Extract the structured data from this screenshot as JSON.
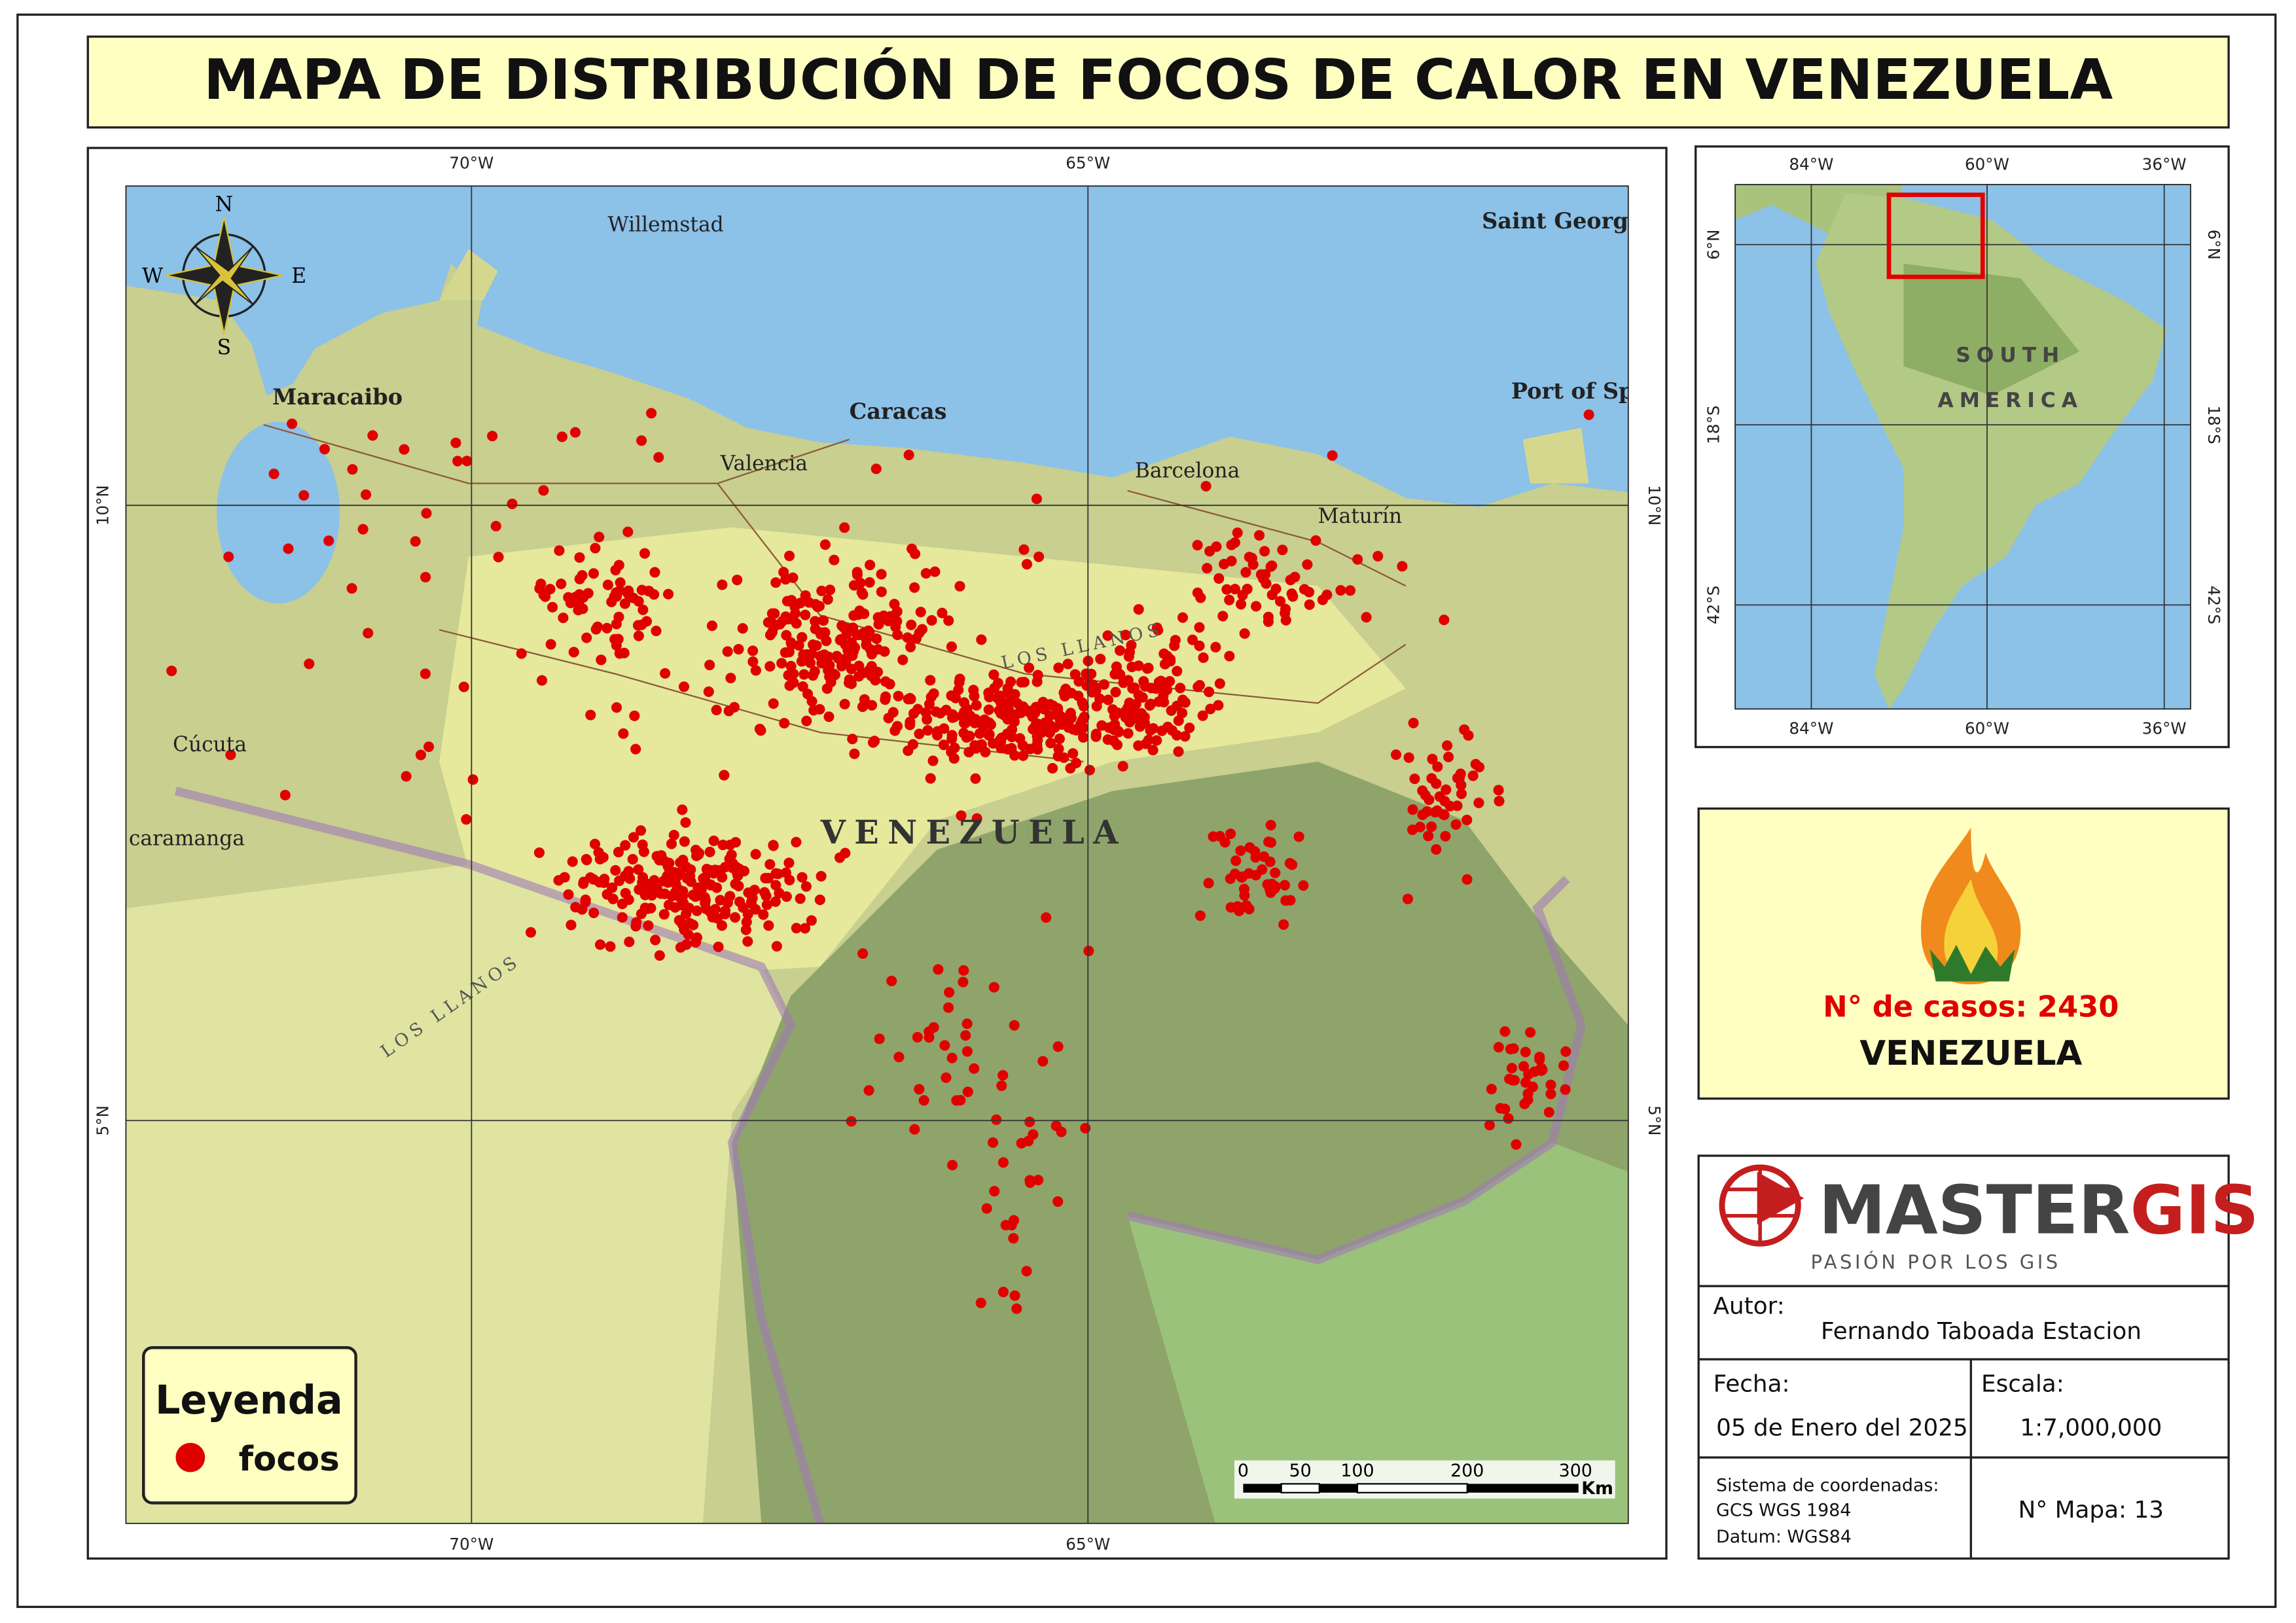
{
  "header": {
    "title": "MAPA DE DISTRIBUCIÓN DE FOCOS DE CALOR EN VENEZUELA"
  },
  "map": {
    "grid": {
      "lon": [
        "70°W",
        "65°W"
      ],
      "lat": [
        "10°N",
        "5°N"
      ]
    },
    "places": [
      "Willemstad",
      "Saint Georg",
      "Maracaibo",
      "Caracas",
      "Valencia",
      "Barcelona",
      "Maturín",
      "Port of Sp",
      "Cúcuta",
      "caramanga"
    ],
    "region_labels": [
      "VENEZUELA",
      "LOS LLANOS",
      "LOS LLANOS"
    ]
  },
  "compass": {
    "n": "N",
    "s": "S",
    "e": "E",
    "w": "W"
  },
  "legend": {
    "title": "Leyenda",
    "item": "focos"
  },
  "scale_bar": {
    "ticks": [
      0,
      50,
      100,
      200,
      300
    ],
    "unit": "Km"
  },
  "inset": {
    "lon": [
      "84°W",
      "60°W",
      "36°W"
    ],
    "lat": [
      "6°N",
      "18°S",
      "42°S"
    ],
    "label_lines": [
      "SOUTH",
      "AMERICA"
    ]
  },
  "cases": {
    "label": "N° de casos: 2430",
    "country": "VENEZUELA"
  },
  "logo": {
    "name_dark": "MASTER",
    "name_red": "GIS",
    "tagline": "PASIÓN POR LOS GIS"
  },
  "credits": {
    "author_label": "Autor:",
    "author": "Fernando Taboada Estacion",
    "date_label": "Fecha:",
    "date": "05 de Enero del 2025",
    "scale_label": "Escala:",
    "scale": "1:7,000,000",
    "crs_lines": [
      "Sistema de coordenadas:",
      "GCS WGS 1984",
      "Datum: WGS84"
    ],
    "map_number": "N° Mapa: 13"
  }
}
